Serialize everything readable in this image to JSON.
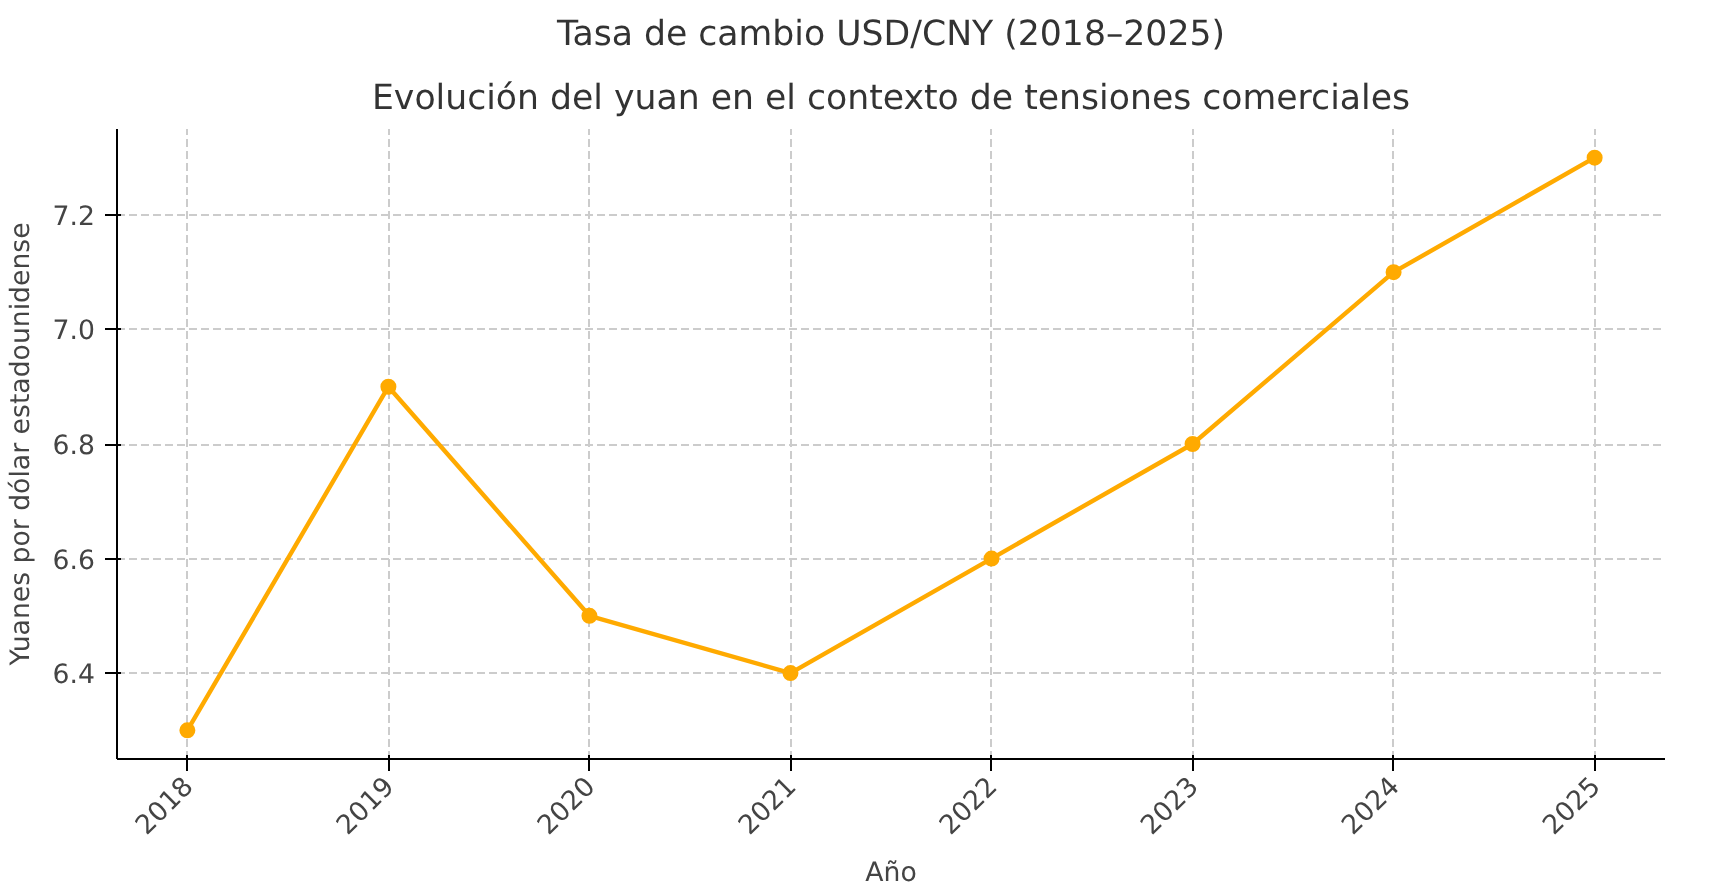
{
  "chart_data": {
    "type": "line",
    "title": "Tasa de cambio USD/CNY (2018–2025)",
    "subtitle": "Evolución del yuan en el contexto de tensiones comerciales",
    "xlabel": "Año",
    "ylabel": "Yuanes por dólar estadounidense",
    "x": [
      2018,
      2019,
      2020,
      2021,
      2022,
      2023,
      2024,
      2025
    ],
    "series": [
      {
        "color": "#ffaa00",
        "values": [
          6.3,
          6.9,
          6.5,
          6.4,
          6.6,
          6.8,
          7.1,
          7.3
        ]
      }
    ],
    "xlim": [
      2017.65,
      2025.35
    ],
    "ylim": [
      6.25,
      7.35
    ],
    "xticks": [
      2018,
      2019,
      2020,
      2021,
      2022,
      2023,
      2024,
      2025
    ],
    "yticks": [
      6.4,
      6.6,
      6.8,
      {
        "value": 7,
        "label": "7.0"
      },
      7.2
    ],
    "grid": true,
    "marker": "circle",
    "line_style": "solid"
  }
}
